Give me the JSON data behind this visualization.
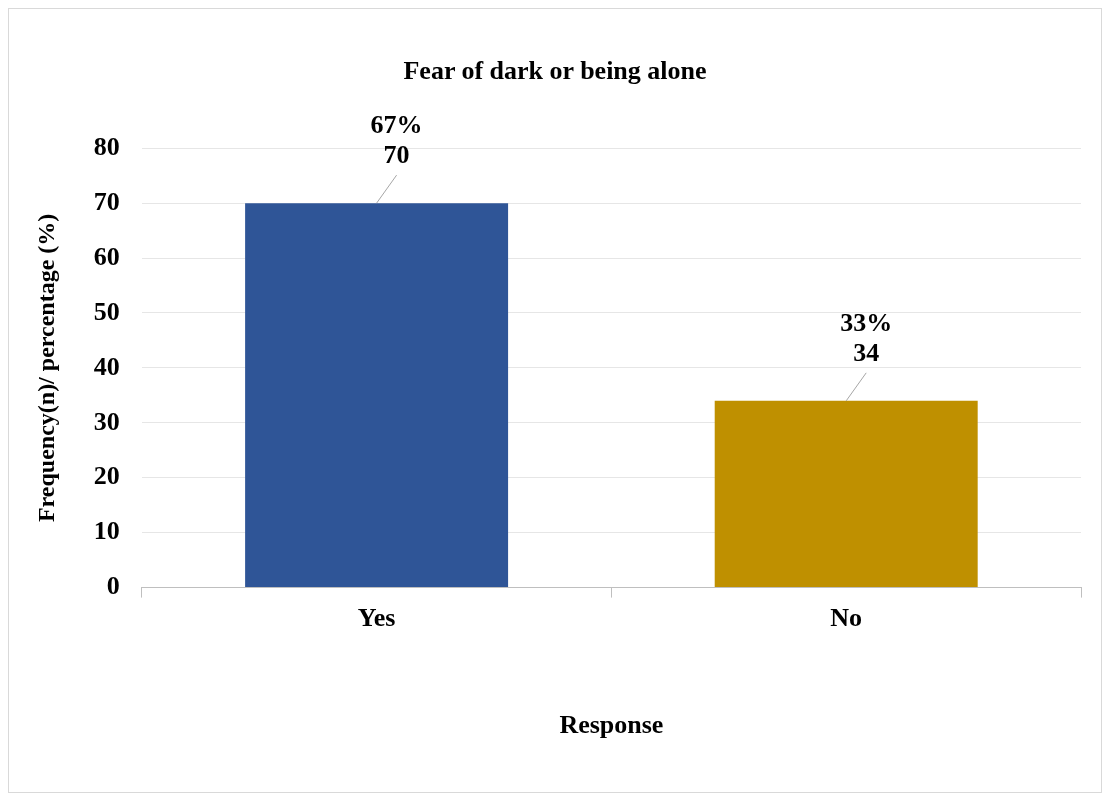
{
  "chart_data": {
    "type": "bar",
    "title": "Fear of dark or being alone",
    "xlabel": "Response",
    "ylabel": "Frequency(n)/ percentage (%)",
    "categories": [
      "Yes",
      "No"
    ],
    "values": [
      70,
      34
    ],
    "colors": [
      "#2f5597",
      "#bf9000"
    ],
    "value_labels": [
      "67%\n70",
      "33%\n34"
    ],
    "ylim": [
      0,
      80
    ],
    "yticks": [
      0,
      10,
      20,
      30,
      40,
      50,
      60,
      70,
      80
    ],
    "grid": "y",
    "legend": false
  }
}
